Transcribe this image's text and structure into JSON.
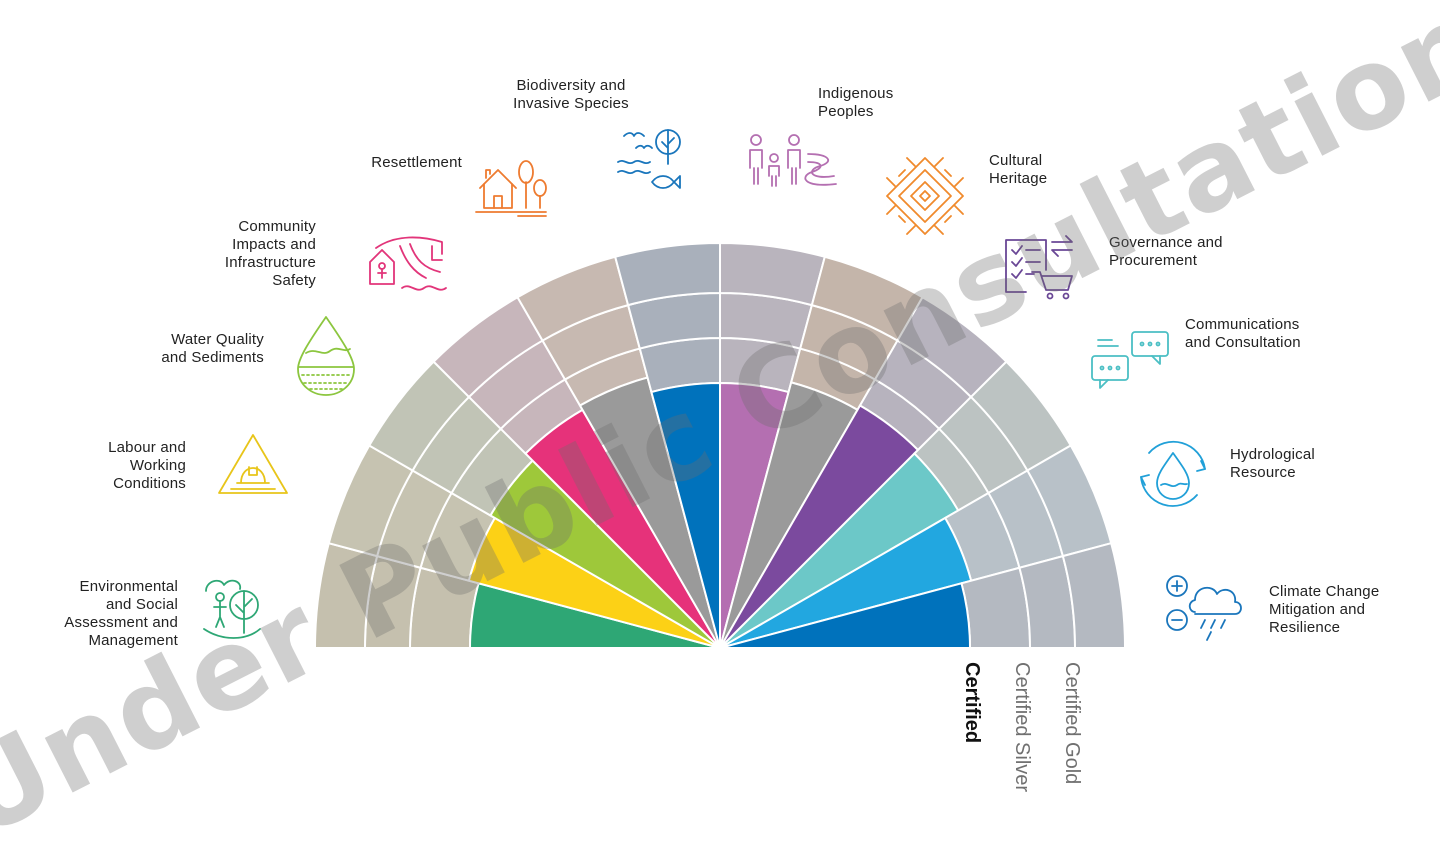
{
  "segments": [
    {
      "label_lines": [
        "Environmental",
        "and Social",
        "Assessment and",
        "Management"
      ],
      "color": "#2ea775",
      "icon": "person-tree-icon"
    },
    {
      "label_lines": [
        "Labour and",
        "Working",
        "Conditions"
      ],
      "color": "#fcd116",
      "icon": "hardhat-triangle-icon"
    },
    {
      "label_lines": [
        "Water Quality",
        "and Sediments"
      ],
      "color": "#9ec83a",
      "icon": "water-drop-layers-icon"
    },
    {
      "label_lines": [
        "Community",
        "Impacts and",
        "Infrastructure",
        "Safety"
      ],
      "color": "#e6327a",
      "icon": "community-safety-icon"
    },
    {
      "label_lines": [
        "Resettlement"
      ],
      "color": "#9a9a9a",
      "icon": "house-trees-icon"
    },
    {
      "label_lines": [
        "Biodiversity and",
        "Invasive Species"
      ],
      "color": "#0072bc",
      "icon": "bird-tree-fish-icon"
    },
    {
      "label_lines": [
        "Indigenous",
        "Peoples"
      ],
      "color": "#b46fb1",
      "icon": "family-river-icon"
    },
    {
      "label_lines": [
        "Cultural",
        "Heritage"
      ],
      "color": "#9a9a9a",
      "icon": "diamond-pattern-icon"
    },
    {
      "label_lines": [
        "Governance and",
        "Procurement"
      ],
      "color": "#7b4a9e",
      "icon": "checklist-cart-icon"
    },
    {
      "label_lines": [
        "Communications",
        "and Consultation"
      ],
      "color": "#6cc8c8",
      "icon": "speech-bubbles-icon"
    },
    {
      "label_lines": [
        "Hydrological",
        "Resource"
      ],
      "color": "#22a7e0",
      "icon": "cycle-droplet-icon"
    },
    {
      "label_lines": [
        "Climate Change",
        "Mitigation and",
        "Resilience"
      ],
      "color": "#0072bc",
      "icon": "cloud-plus-minus-icon"
    }
  ],
  "outer_ring_colors": [
    "#c5c0ae",
    "#c6c3b1",
    "#c1c4b6",
    "#c7b6bb",
    "#c7b9b1",
    "#a9b0bb",
    "#b9b4bd",
    "#c4b5aa",
    "#b7b3be",
    "#bcc3c2",
    "#b8c1c8",
    "#b4b9c1"
  ],
  "tiers": [
    {
      "label": "Certified",
      "color": "#111111",
      "bold": true
    },
    {
      "label": "Certified Silver",
      "color": "#707070",
      "bold": false
    },
    {
      "label": "Certified Gold",
      "color": "#707070",
      "bold": false
    }
  ],
  "watermark": "Under Public Consultation"
}
